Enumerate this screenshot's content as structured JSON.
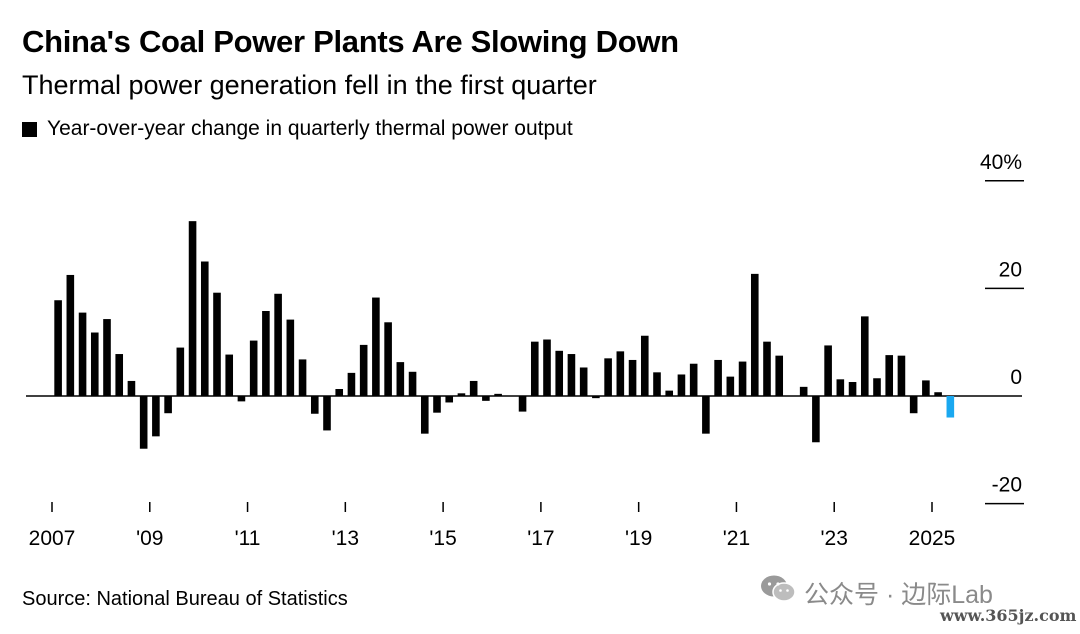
{
  "title": "China's Coal Power Plants Are Slowing Down",
  "subtitle": "Thermal power generation fell in the first quarter",
  "legend": {
    "label": "Year-over-year change in quarterly thermal power output"
  },
  "source": "Source: National Bureau of Statistics",
  "watermark": {
    "text": "公众号 · 边际Lab",
    "url": "www.365jz.com",
    "icon": "wechat-icon"
  },
  "colors": {
    "bar": "#000000",
    "highlight": "#1aa8f0",
    "axis": "#000000"
  },
  "chart_data": {
    "type": "bar",
    "ylim": [
      -20,
      40
    ],
    "yticks": [
      {
        "value": 40,
        "label": "40%"
      },
      {
        "value": 20,
        "label": "20"
      },
      {
        "value": 0,
        "label": "0"
      },
      {
        "value": -20,
        "label": "-20"
      }
    ],
    "x_start_year": 2007,
    "x_end_year": 2025,
    "xticks": [
      {
        "year": 2007,
        "label": "2007"
      },
      {
        "year": 2009,
        "label": "'09"
      },
      {
        "year": 2011,
        "label": "'11"
      },
      {
        "year": 2013,
        "label": "'13"
      },
      {
        "year": 2015,
        "label": "'15"
      },
      {
        "year": 2017,
        "label": "'17"
      },
      {
        "year": 2019,
        "label": "'19"
      },
      {
        "year": 2021,
        "label": "'21"
      },
      {
        "year": 2023,
        "label": "'23"
      },
      {
        "year": 2025,
        "label": "2025"
      }
    ],
    "series": [
      {
        "values": [
          17.8,
          22.5,
          15.5,
          11.8,
          14.3,
          7.8,
          2.8,
          -9.8,
          -7.5,
          -3.2,
          9.0,
          32.5,
          25.0,
          19.2,
          7.7,
          -1.0,
          10.3,
          15.8,
          19.0,
          14.2,
          6.8,
          -3.3,
          -6.4,
          1.3,
          4.3,
          9.5,
          18.3,
          13.7,
          6.3,
          4.5,
          -7.0,
          -3.1,
          -1.2,
          0.5,
          2.8,
          -0.9,
          0.4,
          0.0,
          -2.9,
          10.1,
          10.5,
          8.4,
          7.8,
          5.3,
          -0.4,
          7.0,
          8.3,
          6.7,
          11.2,
          4.4,
          1.0,
          4.0,
          6.0,
          -7.0,
          6.7,
          3.6,
          6.4,
          22.7,
          10.1,
          7.5,
          0.0,
          1.7,
          -8.6,
          9.4,
          3.1,
          2.6,
          14.8,
          3.3,
          7.6,
          7.5,
          -3.2,
          2.9,
          0.7,
          -4.0
        ],
        "highlight_last": true
      }
    ]
  }
}
